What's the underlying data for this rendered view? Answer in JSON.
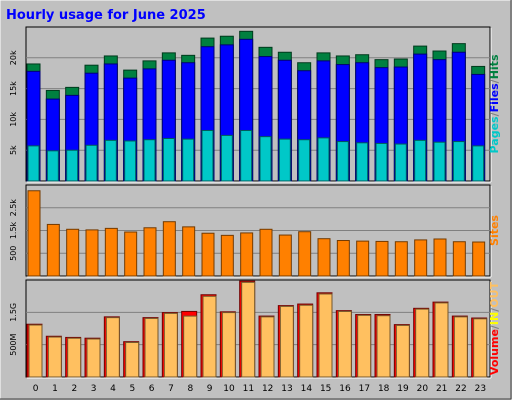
{
  "title": "Hourly usage for June 2025",
  "colors": {
    "background": "#c0c0c0",
    "title": "#0000ff",
    "pages": "#00c8c8",
    "files": "#0000ff",
    "hits": "#008040",
    "sites": "#ff8000",
    "volume": "#ff0000",
    "in": "#ffff00",
    "out": "#ffc060"
  },
  "chart_data": [
    {
      "type": "bar",
      "name": "hits-files-pages",
      "categories": [
        "0",
        "1",
        "2",
        "3",
        "4",
        "5",
        "6",
        "7",
        "8",
        "9",
        "10",
        "11",
        "12",
        "13",
        "14",
        "15",
        "16",
        "17",
        "18",
        "19",
        "20",
        "21",
        "22",
        "23"
      ],
      "y_ticks": [
        "5k",
        "10k",
        "15k",
        "20k"
      ],
      "ylim": [
        0,
        25000
      ],
      "legend": [
        {
          "text": "Pages",
          "color": "#00c8c8"
        },
        {
          "text": "/",
          "color": "#808080"
        },
        {
          "text": "Files",
          "color": "#0000ff"
        },
        {
          "text": "/",
          "color": "#808080"
        },
        {
          "text": "Hits",
          "color": "#008040"
        }
      ],
      "series": [
        {
          "name": "Hits",
          "values": [
            19000,
            14700,
            15200,
            18800,
            20300,
            18000,
            19500,
            20800,
            20400,
            23200,
            23500,
            24300,
            21700,
            20900,
            19200,
            20800,
            20300,
            20500,
            19700,
            19800,
            21900,
            21100,
            22300,
            18600
          ]
        },
        {
          "name": "Files",
          "values": [
            17800,
            13300,
            13900,
            17500,
            19000,
            16700,
            18200,
            19600,
            19200,
            21800,
            22100,
            23000,
            20200,
            19600,
            17900,
            19500,
            18900,
            19200,
            18400,
            18500,
            20600,
            19700,
            20900,
            17300
          ]
        },
        {
          "name": "Pages",
          "values": [
            5700,
            4900,
            5000,
            5800,
            6600,
            6500,
            6700,
            6900,
            6800,
            8200,
            7400,
            8200,
            7200,
            6800,
            6700,
            7000,
            6400,
            6200,
            6100,
            6000,
            6600,
            6300,
            6400,
            5700
          ]
        }
      ]
    },
    {
      "type": "bar",
      "name": "sites",
      "categories": [
        "0",
        "1",
        "2",
        "3",
        "4",
        "5",
        "6",
        "7",
        "8",
        "9",
        "10",
        "11",
        "12",
        "13",
        "14",
        "15",
        "16",
        "17",
        "18",
        "19",
        "20",
        "21",
        "22",
        "23"
      ],
      "y_ticks": [
        "500",
        "1.5k",
        "2.5k"
      ],
      "ylim": [
        0,
        3000
      ],
      "legend": [
        {
          "text": "Sites",
          "color": "#ff8000"
        }
      ],
      "series": [
        {
          "name": "Sites",
          "values": [
            2810,
            1700,
            1540,
            1520,
            1570,
            1450,
            1590,
            1790,
            1620,
            1410,
            1340,
            1420,
            1540,
            1350,
            1460,
            1230,
            1170,
            1150,
            1140,
            1130,
            1190,
            1220,
            1130,
            1120
          ]
        }
      ]
    },
    {
      "type": "bar",
      "name": "volume",
      "categories": [
        "0",
        "1",
        "2",
        "3",
        "4",
        "5",
        "6",
        "7",
        "8",
        "9",
        "10",
        "11",
        "12",
        "13",
        "14",
        "15",
        "16",
        "17",
        "18",
        "19",
        "20",
        "21",
        "22",
        "23"
      ],
      "y_ticks": [
        "500M",
        "1.5G"
      ],
      "ylim": [
        0,
        2500
      ],
      "legend": [
        {
          "text": "Volume",
          "color": "#ff0000"
        },
        {
          "text": "/",
          "color": "#808080"
        },
        {
          "text": "IN",
          "color": "#ffff00"
        },
        {
          "text": "/",
          "color": "#808080"
        },
        {
          "text": "OUT",
          "color": "#ffc060"
        }
      ],
      "series": [
        {
          "name": "Volume",
          "values": [
            1360,
            1050,
            1020,
            1000,
            1550,
            910,
            1530,
            1660,
            1690,
            2120,
            1680,
            2470,
            1570,
            1840,
            1880,
            2170,
            1710,
            1610,
            1610,
            1350,
            1770,
            1930,
            1570,
            1520
          ]
        },
        {
          "name": "OUT",
          "values": [
            1340,
            1030,
            1000,
            980,
            1530,
            890,
            1510,
            1640,
            1570,
            2080,
            1660,
            2440,
            1550,
            1820,
            1850,
            2140,
            1690,
            1590,
            1580,
            1330,
            1750,
            1910,
            1550,
            1500
          ]
        }
      ]
    }
  ]
}
